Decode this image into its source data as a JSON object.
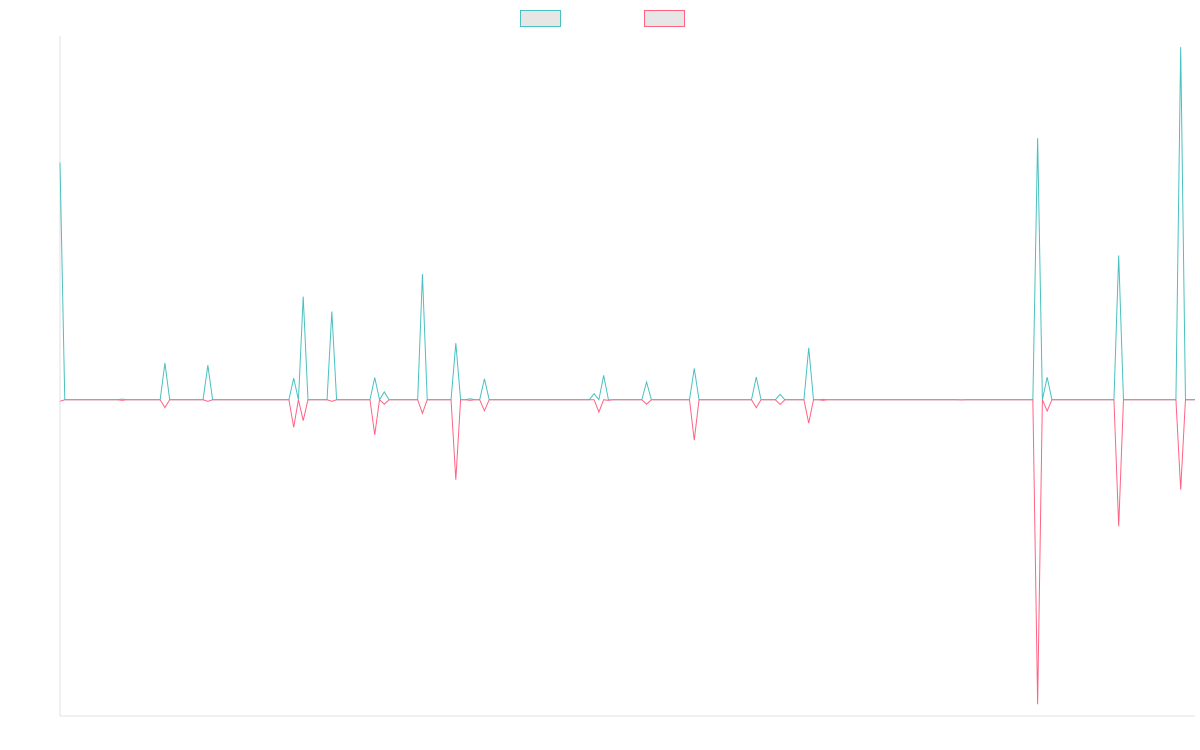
{
  "chart_data": {
    "type": "line",
    "title": "",
    "xlabel": "",
    "ylabel": "",
    "x_count": 239,
    "ylim": [
      -100,
      115
    ],
    "grid": false,
    "legend": "top-center",
    "series": [
      {
        "name": "",
        "color": "#4bc0c0",
        "fill": "#e6e6e6",
        "points": [
          [
            0,
            75
          ],
          [
            1,
            0
          ],
          [
            12,
            0
          ],
          [
            13,
            0.2
          ],
          [
            14,
            0
          ],
          [
            21,
            0
          ],
          [
            22,
            11.6
          ],
          [
            23,
            0
          ],
          [
            30,
            0
          ],
          [
            31,
            10.9
          ],
          [
            32,
            0
          ],
          [
            48,
            0
          ],
          [
            49,
            6.8
          ],
          [
            50,
            0
          ],
          [
            51,
            32.6
          ],
          [
            52,
            0
          ],
          [
            56,
            0
          ],
          [
            57,
            27.9
          ],
          [
            58,
            0
          ],
          [
            65,
            0
          ],
          [
            66,
            7
          ],
          [
            67,
            0
          ],
          [
            68,
            2.5
          ],
          [
            69,
            0
          ],
          [
            75,
            0
          ],
          [
            76,
            39.7
          ],
          [
            77,
            0
          ],
          [
            82,
            0
          ],
          [
            83,
            17.9
          ],
          [
            84,
            0
          ],
          [
            85,
            0
          ],
          [
            86,
            0.3
          ],
          [
            87,
            0
          ],
          [
            88,
            0
          ],
          [
            89,
            6.6
          ],
          [
            90,
            0
          ],
          [
            111,
            0
          ],
          [
            112,
            1.9
          ],
          [
            113,
            0
          ],
          [
            114,
            7.7
          ],
          [
            115,
            0
          ],
          [
            122,
            0
          ],
          [
            123,
            5.6
          ],
          [
            124,
            0
          ],
          [
            132,
            0
          ],
          [
            133,
            9.9
          ],
          [
            134,
            0
          ],
          [
            145,
            0
          ],
          [
            146,
            7.2
          ],
          [
            147,
            0
          ],
          [
            150,
            0
          ],
          [
            151,
            1.7
          ],
          [
            152,
            0
          ],
          [
            156,
            0
          ],
          [
            157,
            16.4
          ],
          [
            158,
            0
          ],
          [
            159,
            0
          ],
          [
            160,
            0.1
          ],
          [
            161,
            0
          ],
          [
            188,
            0
          ],
          [
            189,
            0
          ],
          [
            204,
            0
          ],
          [
            205,
            82.7
          ],
          [
            206,
            0
          ],
          [
            207,
            7.1
          ],
          [
            208,
            0
          ],
          [
            221,
            0
          ],
          [
            222,
            45.6
          ],
          [
            223,
            0
          ],
          [
            234,
            0
          ],
          [
            235,
            111.5
          ],
          [
            236,
            0
          ],
          [
            238,
            0
          ]
        ]
      },
      {
        "name": "",
        "color": "#ff6384",
        "fill": "#e6e6e6",
        "points": [
          [
            0,
            -0.5
          ],
          [
            1,
            0
          ],
          [
            12,
            0
          ],
          [
            13,
            -0.2
          ],
          [
            14,
            0
          ],
          [
            21,
            0
          ],
          [
            22,
            -2.5
          ],
          [
            23,
            0
          ],
          [
            30,
            0
          ],
          [
            31,
            -0.5
          ],
          [
            32,
            0
          ],
          [
            48,
            0
          ],
          [
            49,
            -8.7
          ],
          [
            50,
            0
          ],
          [
            51,
            -6.6
          ],
          [
            52,
            0
          ],
          [
            56,
            0
          ],
          [
            57,
            -0.5
          ],
          [
            58,
            0
          ],
          [
            65,
            0
          ],
          [
            66,
            -11.1
          ],
          [
            67,
            0
          ],
          [
            68,
            -1.4
          ],
          [
            69,
            0
          ],
          [
            75,
            0
          ],
          [
            76,
            -4.3
          ],
          [
            77,
            0
          ],
          [
            82,
            0
          ],
          [
            83,
            -25.3
          ],
          [
            84,
            0
          ],
          [
            85,
            0
          ],
          [
            86,
            -0.2
          ],
          [
            87,
            0
          ],
          [
            88,
            0
          ],
          [
            89,
            -3.5
          ],
          [
            90,
            0
          ],
          [
            111,
            0
          ],
          [
            112,
            0
          ],
          [
            113,
            -3.9
          ],
          [
            114,
            0
          ],
          [
            115,
            -0.2
          ],
          [
            122,
            0
          ],
          [
            123,
            -1.4
          ],
          [
            124,
            0
          ],
          [
            132,
            0
          ],
          [
            133,
            -12.8
          ],
          [
            134,
            0
          ],
          [
            145,
            0
          ],
          [
            146,
            -2.5
          ],
          [
            147,
            0
          ],
          [
            150,
            0
          ],
          [
            151,
            -1.5
          ],
          [
            152,
            0
          ],
          [
            156,
            0
          ],
          [
            157,
            -7.4
          ],
          [
            158,
            0
          ],
          [
            159,
            0
          ],
          [
            160,
            -0.2
          ],
          [
            161,
            0
          ],
          [
            188,
            0
          ],
          [
            189,
            -0.1
          ],
          [
            204,
            0
          ],
          [
            205,
            -96.3
          ],
          [
            206,
            0
          ],
          [
            207,
            -3.6
          ],
          [
            208,
            0
          ],
          [
            221,
            0
          ],
          [
            222,
            -40
          ],
          [
            223,
            0
          ],
          [
            234,
            0
          ],
          [
            235,
            -28.4
          ],
          [
            236,
            0
          ],
          [
            238,
            0
          ]
        ]
      }
    ]
  }
}
